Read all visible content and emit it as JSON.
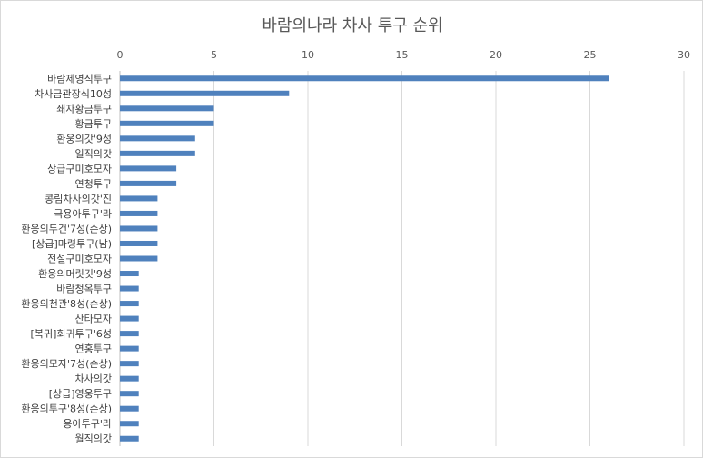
{
  "chart_data": {
    "type": "bar",
    "orientation": "horizontal",
    "title": "바람의나라 차사 투구 순위",
    "xlabel": "",
    "ylabel": "",
    "xlim": [
      0,
      30
    ],
    "x_ticks": [
      0,
      5,
      10,
      15,
      20,
      25,
      30
    ],
    "x_axis_position": "top",
    "grid": true,
    "legend": "none",
    "bar_color": "#4f81bd",
    "categories": [
      "바람제영식투구",
      "차사금관장식10성",
      "쇄자황금투구",
      "황금투구",
      "환웅의갓'9성",
      "일직의갓",
      "상급구미호모자",
      "연청투구",
      "콩림차사의갓'진",
      "극용아투구'라",
      "환웅의두건'7성(손상)",
      "[상급]마령투구(남)",
      "전설구미호모자",
      "환웅의머릿깃'9성",
      "바람청옥투구",
      "환웅의천관'8성(손상)",
      "산타모자",
      "[복귀]회귀투구'6성",
      "연홍투구",
      "환웅의모자'7성(손상)",
      "차사의갓",
      "[상급]영웅투구",
      "환웅의투구'8성(손상)",
      "용아투구'라",
      "월직의갓"
    ],
    "values": [
      26,
      9,
      5,
      5,
      4,
      4,
      3,
      3,
      2,
      2,
      2,
      2,
      2,
      1,
      1,
      1,
      1,
      1,
      1,
      1,
      1,
      1,
      1,
      1,
      1
    ]
  }
}
